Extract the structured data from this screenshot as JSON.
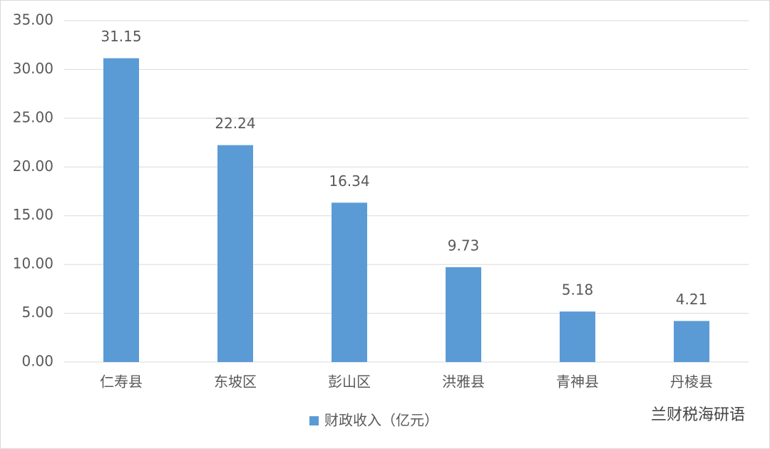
{
  "chart_data": {
    "type": "bar",
    "categories": [
      "仁寿县",
      "东坡区",
      "彭山区",
      "洪雅县",
      "青神县",
      "丹棱县"
    ],
    "series": [
      {
        "name": "财政收入（亿元）",
        "color": "#5b9bd5",
        "values": [
          31.15,
          22.24,
          16.34,
          9.73,
          5.18,
          4.21
        ]
      }
    ],
    "ylim": [
      0,
      35
    ],
    "yticks": [
      {
        "value": 0,
        "label": "0.00"
      },
      {
        "value": 5,
        "label": "5.00"
      },
      {
        "value": 10,
        "label": "10.00"
      },
      {
        "value": 15,
        "label": "15.00"
      },
      {
        "value": 20,
        "label": "20.00"
      },
      {
        "value": 25,
        "label": "25.00"
      },
      {
        "value": 30,
        "label": "30.00"
      },
      {
        "value": 35,
        "label": "35.00"
      }
    ],
    "grid": true,
    "legend": "bottom",
    "watermark": "兰财税海研语"
  }
}
